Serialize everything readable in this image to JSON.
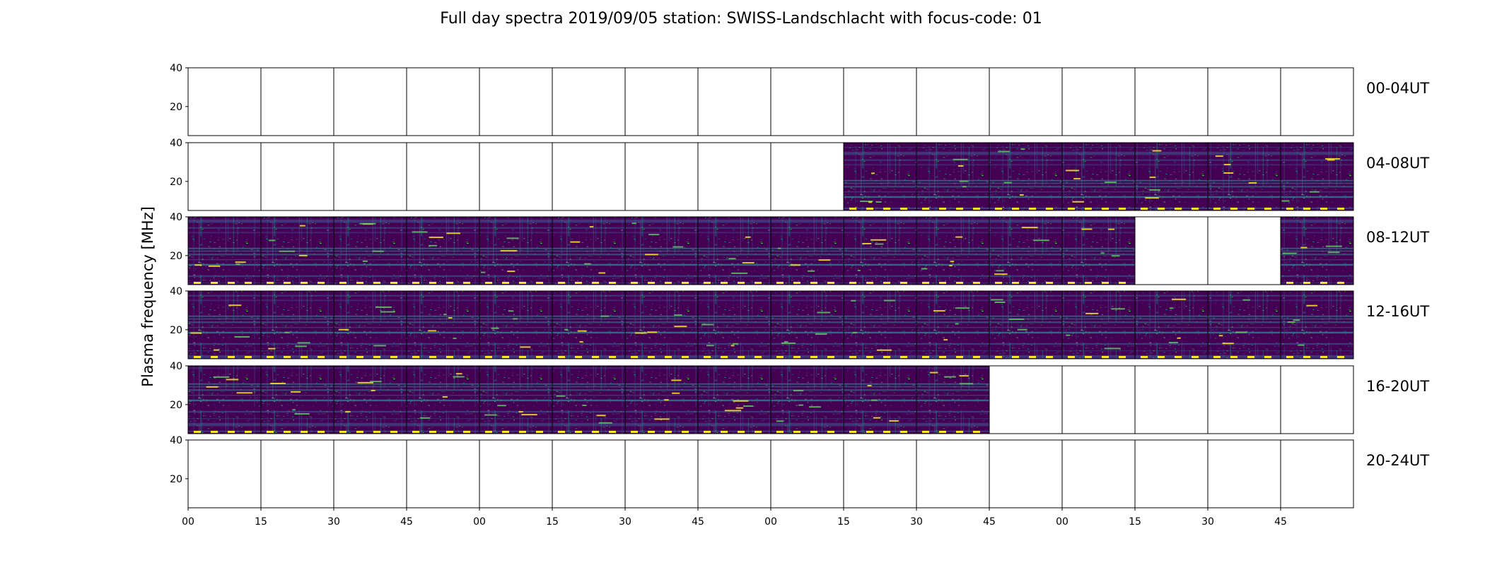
{
  "chart_data": {
    "type": "heatmap",
    "title": "Full day spectra 2019/09/05 station: SWISS-Landschlacht with focus-code: 01",
    "ylabel": "Plasma frequency [MHz]",
    "xlabel": "",
    "ylim": [
      5,
      40
    ],
    "y_ticks": [
      "20",
      "40"
    ],
    "x_ticks": [
      "00",
      "15",
      "30",
      "45",
      "00",
      "15",
      "30",
      "45",
      "00",
      "15",
      "30",
      "45",
      "00",
      "15",
      "30",
      "45"
    ],
    "x_tick_positions_minutes": [
      0,
      15,
      30,
      45,
      60,
      75,
      90,
      105,
      120,
      135,
      150,
      165,
      180,
      195,
      210,
      225
    ],
    "panel_minutes": 15,
    "rows": [
      {
        "label": "00-04UT",
        "panels": [
          0,
          0,
          0,
          0,
          0,
          0,
          0,
          0,
          0,
          0,
          0,
          0,
          0,
          0,
          0,
          0
        ]
      },
      {
        "label": "04-08UT",
        "panels": [
          0,
          0,
          0,
          0,
          0,
          0,
          0,
          0,
          0,
          1,
          1,
          1,
          1,
          1,
          1,
          1
        ]
      },
      {
        "label": "08-12UT",
        "panels": [
          1,
          1,
          1,
          1,
          1,
          1,
          1,
          1,
          1,
          1,
          1,
          1,
          1,
          0,
          0,
          1
        ]
      },
      {
        "label": "12-16UT",
        "panels": [
          1,
          1,
          1,
          1,
          1,
          1,
          1,
          1,
          1,
          1,
          1,
          1,
          1,
          1,
          1,
          1
        ]
      },
      {
        "label": "16-20UT",
        "panels": [
          1,
          1,
          1,
          1,
          1,
          1,
          1,
          1,
          1,
          1,
          1,
          0,
          0,
          0,
          0,
          0
        ]
      },
      {
        "label": "20-24UT",
        "panels": [
          0,
          0,
          0,
          0,
          0,
          0,
          0,
          0,
          0,
          0,
          0,
          0,
          0,
          0,
          0,
          0
        ]
      }
    ],
    "colormap": [
      "#440154",
      "#3b528b",
      "#21918c",
      "#5ec962",
      "#fde725"
    ],
    "background": "#440154",
    "grid": false,
    "legend": "none"
  }
}
